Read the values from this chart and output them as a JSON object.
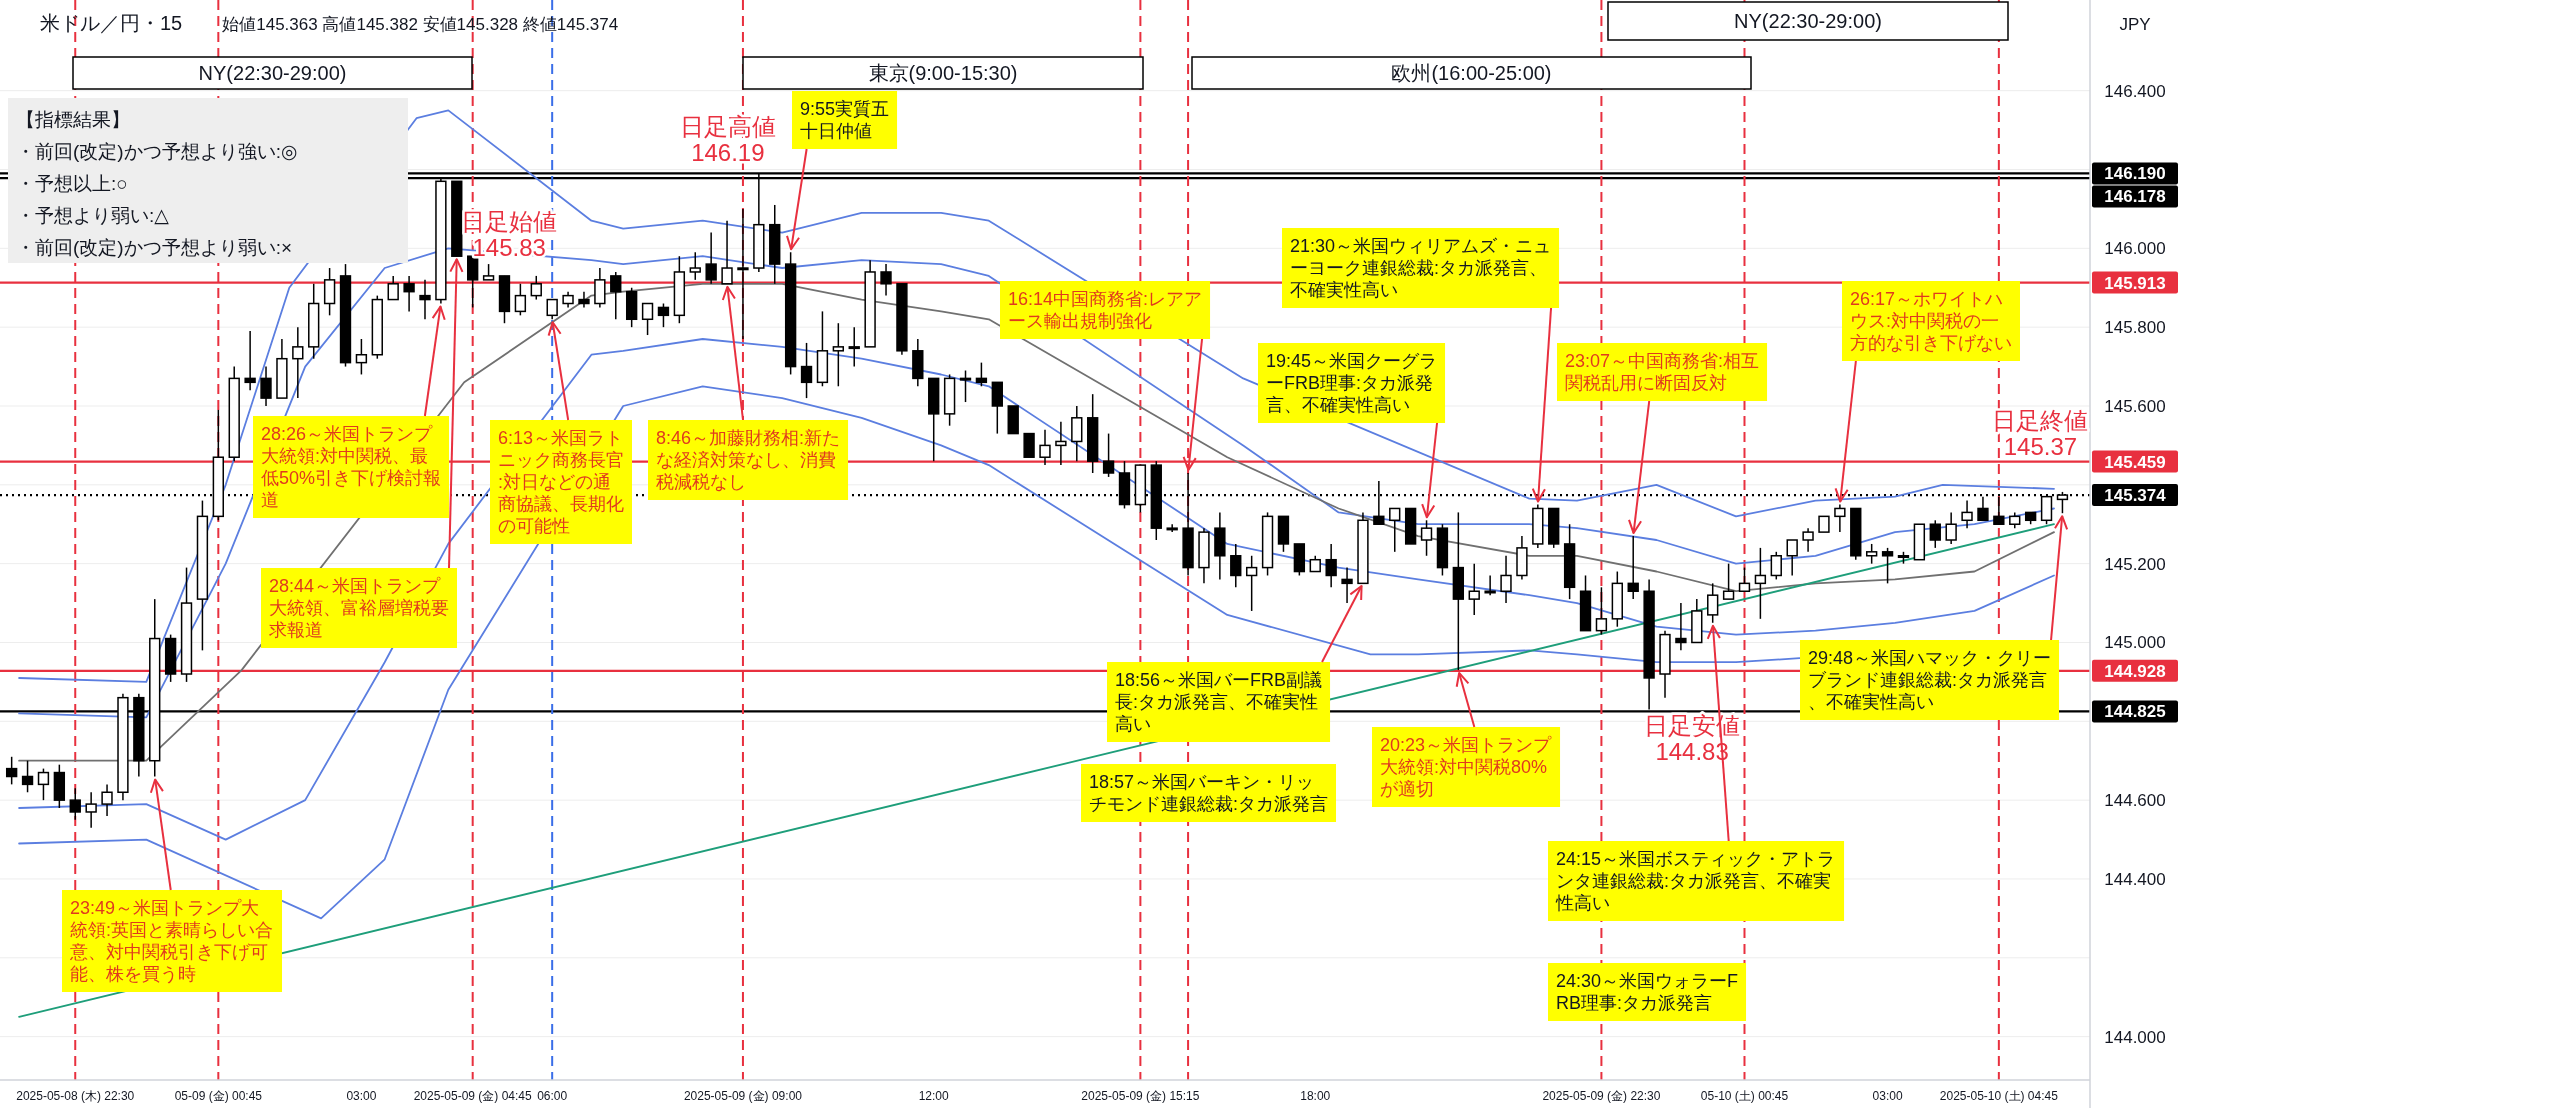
{
  "chart_data": {
    "type": "candlestick",
    "title": "米ドル／円・15",
    "subtitle": "始値145.363 高値145.382 安値145.328 終値145.374",
    "ylabel": "JPY",
    "x": [
      "2025-05-08T21:30",
      "2025-05-08T21:45",
      "2025-05-08T22:00",
      "2025-05-08T22:15",
      "2025-05-08T22:30",
      "2025-05-08T22:45",
      "2025-05-08T23:00",
      "2025-05-08T23:15",
      "2025-05-08T23:30",
      "2025-05-08T23:45",
      "2025-05-09T00:00",
      "2025-05-09T00:15",
      "2025-05-09T00:30",
      "2025-05-09T00:45",
      "2025-05-09T01:00",
      "2025-05-09T01:15",
      "2025-05-09T01:30",
      "2025-05-09T01:45",
      "2025-05-09T02:00",
      "2025-05-09T02:15",
      "2025-05-09T02:30",
      "2025-05-09T02:45",
      "2025-05-09T03:00",
      "2025-05-09T03:15",
      "2025-05-09T03:30",
      "2025-05-09T03:45",
      "2025-05-09T04:00",
      "2025-05-09T04:15",
      "2025-05-09T04:30",
      "2025-05-09T04:45",
      "2025-05-09T05:00",
      "2025-05-09T05:15",
      "2025-05-09T05:30",
      "2025-05-09T05:45",
      "2025-05-09T06:00",
      "2025-05-09T06:15",
      "2025-05-09T06:30",
      "2025-05-09T06:45",
      "2025-05-09T07:00",
      "2025-05-09T07:15",
      "2025-05-09T07:30",
      "2025-05-09T07:45",
      "2025-05-09T08:00",
      "2025-05-09T08:15",
      "2025-05-09T08:30",
      "2025-05-09T08:45",
      "2025-05-09T09:00",
      "2025-05-09T09:15",
      "2025-05-09T09:30",
      "2025-05-09T09:45",
      "2025-05-09T10:00",
      "2025-05-09T10:15",
      "2025-05-09T10:30",
      "2025-05-09T10:45",
      "2025-05-09T11:00",
      "2025-05-09T11:15",
      "2025-05-09T11:30",
      "2025-05-09T11:45",
      "2025-05-09T12:00",
      "2025-05-09T12:15",
      "2025-05-09T12:30",
      "2025-05-09T12:45",
      "2025-05-09T13:00",
      "2025-05-09T13:15",
      "2025-05-09T13:30",
      "2025-05-09T13:45",
      "2025-05-09T14:00",
      "2025-05-09T14:15",
      "2025-05-09T14:30",
      "2025-05-09T14:45",
      "2025-05-09T15:00",
      "2025-05-09T15:15",
      "2025-05-09T15:30",
      "2025-05-09T15:45",
      "2025-05-09T16:00",
      "2025-05-09T16:15",
      "2025-05-09T16:30",
      "2025-05-09T16:45",
      "2025-05-09T17:00",
      "2025-05-09T17:15",
      "2025-05-09T17:30",
      "2025-05-09T17:45",
      "2025-05-09T18:00",
      "2025-05-09T18:15",
      "2025-05-09T18:30",
      "2025-05-09T18:45",
      "2025-05-09T19:00",
      "2025-05-09T19:15",
      "2025-05-09T19:30",
      "2025-05-09T19:45",
      "2025-05-09T20:00",
      "2025-05-09T20:15",
      "2025-05-09T20:30",
      "2025-05-09T20:45",
      "2025-05-09T21:00",
      "2025-05-09T21:15",
      "2025-05-09T21:30",
      "2025-05-09T21:45",
      "2025-05-09T22:00",
      "2025-05-09T22:15",
      "2025-05-09T22:30",
      "2025-05-09T22:45",
      "2025-05-09T23:00",
      "2025-05-09T23:15",
      "2025-05-09T23:30",
      "2025-05-09T23:45",
      "2025-05-10T00:00",
      "2025-05-10T00:15",
      "2025-05-10T00:30",
      "2025-05-10T00:45",
      "2025-05-10T01:00",
      "2025-05-10T01:15",
      "2025-05-10T01:30",
      "2025-05-10T01:45",
      "2025-05-10T02:00",
      "2025-05-10T02:15",
      "2025-05-10T02:30",
      "2025-05-10T02:45",
      "2025-05-10T03:00",
      "2025-05-10T03:15",
      "2025-05-10T03:30",
      "2025-05-10T03:45",
      "2025-05-10T04:00",
      "2025-05-10T04:15",
      "2025-05-10T04:30",
      "2025-05-10T04:45",
      "2025-05-10T05:00",
      "2025-05-10T05:15",
      "2025-05-10T05:30",
      "2025-05-10T05:45"
    ],
    "ohlc": [
      [
        144.68,
        144.71,
        144.64,
        144.66
      ],
      [
        144.66,
        144.7,
        144.62,
        144.64
      ],
      [
        144.64,
        144.68,
        144.6,
        144.67
      ],
      [
        144.67,
        144.69,
        144.58,
        144.6
      ],
      [
        144.6,
        144.63,
        144.55,
        144.57
      ],
      [
        144.57,
        144.62,
        144.53,
        144.59
      ],
      [
        144.59,
        144.64,
        144.56,
        144.62
      ],
      [
        144.62,
        144.87,
        144.6,
        144.86
      ],
      [
        144.86,
        144.87,
        144.66,
        144.7
      ],
      [
        144.7,
        145.11,
        144.66,
        145.01
      ],
      [
        145.01,
        145.02,
        144.9,
        144.92
      ],
      [
        144.92,
        145.19,
        144.9,
        145.1
      ],
      [
        145.11,
        145.36,
        144.98,
        145.32
      ],
      [
        145.32,
        145.59,
        145.31,
        145.47
      ],
      [
        145.47,
        145.7,
        145.46,
        145.67
      ],
      [
        145.67,
        145.79,
        145.64,
        145.66
      ],
      [
        145.67,
        145.7,
        145.6,
        145.62
      ],
      [
        145.62,
        145.77,
        145.62,
        145.72
      ],
      [
        145.72,
        145.8,
        145.62,
        145.75
      ],
      [
        145.75,
        145.91,
        145.72,
        145.86
      ],
      [
        145.86,
        145.95,
        145.83,
        145.92
      ],
      [
        145.93,
        145.96,
        145.7,
        145.71
      ],
      [
        145.71,
        145.77,
        145.68,
        145.73
      ],
      [
        145.73,
        145.88,
        145.72,
        145.87
      ],
      [
        145.87,
        145.93,
        145.87,
        145.91
      ],
      [
        145.91,
        145.93,
        145.84,
        145.89
      ],
      [
        145.88,
        145.92,
        145.82,
        145.87
      ],
      [
        145.87,
        146.18,
        145.86,
        146.17
      ],
      [
        146.17,
        146.17,
        145.98,
        145.98
      ],
      [
        145.98,
        145.98,
        145.85,
        145.92
      ],
      [
        145.92,
        145.96,
        145.92,
        145.93
      ],
      [
        145.93,
        145.93,
        145.81,
        145.84
      ],
      [
        145.84,
        145.91,
        145.83,
        145.88
      ],
      [
        145.88,
        145.93,
        145.87,
        145.91
      ],
      [
        145.83,
        145.87,
        145.82,
        145.87
      ],
      [
        145.86,
        145.89,
        145.85,
        145.88
      ],
      [
        145.87,
        145.89,
        145.85,
        145.86
      ],
      [
        145.86,
        145.95,
        145.85,
        145.92
      ],
      [
        145.93,
        145.94,
        145.82,
        145.89
      ],
      [
        145.89,
        145.9,
        145.8,
        145.82
      ],
      [
        145.82,
        145.86,
        145.78,
        145.86
      ],
      [
        145.85,
        145.86,
        145.8,
        145.83
      ],
      [
        145.83,
        145.98,
        145.81,
        145.94
      ],
      [
        145.94,
        145.99,
        145.92,
        145.95
      ],
      [
        145.96,
        146.04,
        145.91,
        145.92
      ],
      [
        145.91,
        146.07,
        145.91,
        145.95
      ],
      [
        145.95,
        146.1,
        145.77,
        145.95
      ],
      [
        145.95,
        146.19,
        145.94,
        146.06
      ],
      [
        146.06,
        146.11,
        145.91,
        145.96
      ],
      [
        145.96,
        145.99,
        145.68,
        145.7
      ],
      [
        145.7,
        145.76,
        145.62,
        145.66
      ],
      [
        145.66,
        145.84,
        145.65,
        145.74
      ],
      [
        145.74,
        145.81,
        145.65,
        145.75
      ],
      [
        145.75,
        145.8,
        145.7,
        145.75
      ],
      [
        145.75,
        145.97,
        145.75,
        145.94
      ],
      [
        145.94,
        145.96,
        145.88,
        145.91
      ],
      [
        145.91,
        145.91,
        145.73,
        145.74
      ],
      [
        145.74,
        145.77,
        145.65,
        145.67
      ],
      [
        145.67,
        145.67,
        145.46,
        145.58
      ],
      [
        145.58,
        145.68,
        145.55,
        145.67
      ],
      [
        145.67,
        145.69,
        145.61,
        145.67
      ],
      [
        145.67,
        145.71,
        145.65,
        145.66
      ],
      [
        145.66,
        145.66,
        145.53,
        145.6
      ],
      [
        145.6,
        145.6,
        145.53,
        145.53
      ],
      [
        145.53,
        145.53,
        145.47,
        145.47
      ],
      [
        145.47,
        145.54,
        145.45,
        145.5
      ],
      [
        145.5,
        145.56,
        145.45,
        145.51
      ],
      [
        145.51,
        145.6,
        145.46,
        145.57
      ],
      [
        145.57,
        145.63,
        145.43,
        145.46
      ],
      [
        145.46,
        145.53,
        145.42,
        145.43
      ],
      [
        145.43,
        145.46,
        145.34,
        145.35
      ],
      [
        145.35,
        145.45,
        145.33,
        145.45
      ],
      [
        145.45,
        145.46,
        145.26,
        145.29
      ],
      [
        145.29,
        145.3,
        145.28,
        145.29
      ],
      [
        145.29,
        145.43,
        145.17,
        145.19
      ],
      [
        145.19,
        145.29,
        145.15,
        145.28
      ],
      [
        145.29,
        145.33,
        145.16,
        145.22
      ],
      [
        145.22,
        145.25,
        145.14,
        145.17
      ],
      [
        145.17,
        145.22,
        145.08,
        145.19
      ],
      [
        145.19,
        145.33,
        145.17,
        145.32
      ],
      [
        145.32,
        145.32,
        145.23,
        145.25
      ],
      [
        145.25,
        145.25,
        145.17,
        145.18
      ],
      [
        145.18,
        145.22,
        145.18,
        145.21
      ],
      [
        145.21,
        145.25,
        145.14,
        145.17
      ],
      [
        145.16,
        145.19,
        145.1,
        145.15
      ],
      [
        145.15,
        145.33,
        145.15,
        145.31
      ],
      [
        145.32,
        145.41,
        145.3,
        145.3
      ],
      [
        145.31,
        145.34,
        145.23,
        145.34
      ],
      [
        145.34,
        145.34,
        145.25,
        145.25
      ],
      [
        145.26,
        145.31,
        145.22,
        145.29
      ],
      [
        145.29,
        145.3,
        145.17,
        145.19
      ],
      [
        145.19,
        145.33,
        144.93,
        145.11
      ],
      [
        145.11,
        145.2,
        145.07,
        145.13
      ],
      [
        145.13,
        145.17,
        145.12,
        145.13
      ],
      [
        145.13,
        145.22,
        145.1,
        145.17
      ],
      [
        145.17,
        145.27,
        145.16,
        145.24
      ],
      [
        145.25,
        145.35,
        145.24,
        145.34
      ],
      [
        145.34,
        145.34,
        145.24,
        145.25
      ],
      [
        145.25,
        145.3,
        145.11,
        145.14
      ],
      [
        145.13,
        145.17,
        145.03,
        145.03
      ],
      [
        145.03,
        145.14,
        145.02,
        145.06
      ],
      [
        145.06,
        145.18,
        145.04,
        145.15
      ],
      [
        145.15,
        145.27,
        145.11,
        145.13
      ],
      [
        145.13,
        145.16,
        144.83,
        144.91
      ],
      [
        144.92,
        145.03,
        144.86,
        145.02
      ],
      [
        145.01,
        145.1,
        144.98,
        145.0
      ],
      [
        145.0,
        145.11,
        145.0,
        145.08
      ],
      [
        145.07,
        145.15,
        145.05,
        145.12
      ],
      [
        145.11,
        145.2,
        145.11,
        145.13
      ],
      [
        145.13,
        145.19,
        145.13,
        145.15
      ],
      [
        145.15,
        145.24,
        145.06,
        145.17
      ],
      [
        145.17,
        145.23,
        145.16,
        145.22
      ],
      [
        145.22,
        145.26,
        145.17,
        145.26
      ],
      [
        145.26,
        145.29,
        145.23,
        145.28
      ],
      [
        145.28,
        145.32,
        145.28,
        145.32
      ],
      [
        145.32,
        145.35,
        145.28,
        145.34
      ],
      [
        145.34,
        145.34,
        145.21,
        145.22
      ],
      [
        145.22,
        145.25,
        145.2,
        145.23
      ],
      [
        145.23,
        145.24,
        145.15,
        145.22
      ],
      [
        145.22,
        145.23,
        145.2,
        145.22
      ],
      [
        145.21,
        145.3,
        145.21,
        145.3
      ],
      [
        145.3,
        145.31,
        145.24,
        145.26
      ],
      [
        145.26,
        145.33,
        145.25,
        145.3
      ],
      [
        145.31,
        145.36,
        145.29,
        145.33
      ],
      [
        145.34,
        145.37,
        145.31,
        145.31
      ],
      [
        145.32,
        145.37,
        145.3,
        145.3
      ],
      [
        145.3,
        145.33,
        145.29,
        145.32
      ],
      [
        145.33,
        145.33,
        145.3,
        145.31
      ],
      [
        145.31,
        145.37,
        145.3,
        145.37
      ],
      [
        145.363,
        145.382,
        145.328,
        145.374
      ]
    ],
    "series": [
      {
        "type": "line",
        "color": "#5b7ee0",
        "x": [
          "2025-05-08T21:37",
          "2025-05-08T23:37",
          "2025-05-09T00:52",
          "2025-05-09T01:52",
          "2025-05-09T03:52",
          "2025-05-09T04:22",
          "2025-05-09T06:37",
          "2025-05-09T07:07",
          "2025-05-09T08:22",
          "2025-05-09T09:37",
          "2025-05-09T10:52",
          "2025-05-09T12:07",
          "2025-05-09T12:52",
          "2025-05-09T16:52",
          "2025-05-09T21:22",
          "2025-05-09T22:07",
          "2025-05-09T23:22",
          "2025-05-10T00:37",
          "2025-05-10T01:52",
          "2025-05-10T03:07",
          "2025-05-10T03:52",
          "2025-05-10T05:37"
        ],
        "values": [
          144.91,
          144.9,
          145.4,
          145.9,
          146.33,
          146.35,
          146.07,
          146.05,
          146.07,
          146.04,
          146.09,
          146.09,
          146.07,
          145.67,
          145.365,
          145.36,
          145.4,
          145.32,
          145.36,
          145.37,
          145.4,
          145.39
        ]
      },
      {
        "type": "line",
        "color": "#5b7ee0",
        "x": [
          "2025-05-08T21:37",
          "2025-05-08T23:37",
          "2025-05-09T00:52",
          "2025-05-09T02:07",
          "2025-05-09T03:22",
          "2025-05-09T04:22",
          "2025-05-09T06:37",
          "2025-05-09T07:07",
          "2025-05-09T08:22",
          "2025-05-09T09:37",
          "2025-05-09T10:52",
          "2025-05-09T12:07",
          "2025-05-09T12:52",
          "2025-05-09T16:52",
          "2025-05-09T18:22",
          "2025-05-09T19:37",
          "2025-05-09T21:22",
          "2025-05-09T22:07",
          "2025-05-09T23:22",
          "2025-05-10T00:37",
          "2025-05-10T01:52",
          "2025-05-10T03:07",
          "2025-05-10T04:22",
          "2025-05-10T05:37"
        ],
        "values": [
          144.82,
          144.81,
          145.2,
          145.7,
          145.95,
          146.0,
          145.97,
          145.96,
          145.98,
          145.95,
          145.97,
          145.96,
          145.93,
          145.5,
          145.33,
          145.3,
          145.3,
          145.29,
          145.26,
          145.2,
          145.22,
          145.28,
          145.3,
          145.34
        ]
      },
      {
        "type": "line",
        "color": "#707070",
        "x": [
          "2025-05-08T21:37",
          "2025-05-08T23:37",
          "2025-05-09T01:07",
          "2025-05-09T04:37",
          "2025-05-09T06:37",
          "2025-05-09T07:07",
          "2025-05-09T08:22",
          "2025-05-09T09:37",
          "2025-05-09T10:52",
          "2025-05-09T12:07",
          "2025-05-09T12:52",
          "2025-05-09T16:37",
          "2025-05-09T18:22",
          "2025-05-09T19:37",
          "2025-05-09T21:22",
          "2025-05-09T22:07",
          "2025-05-09T23:22",
          "2025-05-10T00:37",
          "2025-05-10T01:52",
          "2025-05-10T03:07",
          "2025-05-10T04:22",
          "2025-05-10T05:37"
        ],
        "values": [
          144.7,
          144.7,
          144.93,
          145.66,
          145.88,
          145.89,
          145.91,
          145.91,
          145.87,
          145.84,
          145.82,
          145.47,
          145.34,
          145.27,
          145.22,
          145.22,
          145.18,
          145.13,
          145.15,
          145.16,
          145.18,
          145.28
        ]
      },
      {
        "type": "line",
        "color": "#5b7ee0",
        "x": [
          "2025-05-08T21:37",
          "2025-05-08T23:37",
          "2025-05-09T00:52",
          "2025-05-09T02:07",
          "2025-05-09T03:22",
          "2025-05-09T04:22",
          "2025-05-09T06:37",
          "2025-05-09T07:07",
          "2025-05-09T08:22",
          "2025-05-09T09:37",
          "2025-05-09T10:52",
          "2025-05-09T12:07",
          "2025-05-09T12:52",
          "2025-05-09T16:37",
          "2025-05-09T18:22",
          "2025-05-09T19:37",
          "2025-05-09T21:22",
          "2025-05-09T22:07",
          "2025-05-09T23:22",
          "2025-05-10T00:37",
          "2025-05-10T01:52",
          "2025-05-10T03:07",
          "2025-05-10T04:22",
          "2025-05-10T05:37"
        ],
        "values": [
          144.58,
          144.59,
          144.5,
          144.6,
          144.95,
          145.25,
          145.73,
          145.74,
          145.77,
          145.75,
          145.72,
          145.68,
          145.65,
          145.25,
          145.19,
          145.16,
          145.12,
          145.1,
          145.04,
          145.02,
          145.03,
          145.05,
          145.08,
          145.17
        ]
      },
      {
        "type": "line",
        "color": "#5b7ee0",
        "x": [
          "2025-05-08T21:37",
          "2025-05-08T23:37",
          "2025-05-09T02:22",
          "2025-05-09T03:22",
          "2025-05-09T04:22",
          "2025-05-09T07:07",
          "2025-05-09T08:22",
          "2025-05-09T09:37",
          "2025-05-09T10:52",
          "2025-05-09T12:07",
          "2025-05-09T12:52",
          "2025-05-09T16:37",
          "2025-05-09T18:52",
          "2025-05-09T19:37",
          "2025-05-09T21:22",
          "2025-05-09T22:07",
          "2025-05-09T23:22",
          "2025-05-10T00:37",
          "2025-05-10T01:37"
        ],
        "values": [
          144.49,
          144.5,
          144.3,
          144.45,
          144.88,
          145.6,
          145.65,
          145.62,
          145.57,
          145.5,
          145.45,
          145.07,
          144.97,
          144.97,
          144.98,
          144.97,
          144.95,
          144.95,
          144.96
        ]
      },
      {
        "type": "line",
        "color": "#1e9e7a",
        "x": [
          "2025-05-08T21:37",
          "2025-05-10T05:37"
        ],
        "values": [
          144.05,
          145.3
        ]
      }
    ],
    "xlim": [
      "2025-05-08T21:19",
      "2025-05-10T06:11"
    ],
    "xticks": [
      {
        "value": "2025-05-08T22:30",
        "label": "2025-05-08 (木) 22:30"
      },
      {
        "value": "2025-05-09T00:45",
        "label": "05-09 (金) 00:45"
      },
      {
        "value": "2025-05-09T03:00",
        "label": "03:00"
      },
      {
        "value": "2025-05-09T04:45",
        "label": "2025-05-09 (金) 04:45"
      },
      {
        "value": "2025-05-09T06:00",
        "label": "06:00"
      },
      {
        "value": "2025-05-09T09:00",
        "label": "2025-05-09 (金) 09:00"
      },
      {
        "value": "2025-05-09T12:00",
        "label": "12:00"
      },
      {
        "value": "2025-05-09T15:15",
        "label": "2025-05-09 (金) 15:15"
      },
      {
        "value": "2025-05-09T18:00",
        "label": "18:00"
      },
      {
        "value": "2025-05-09T22:30",
        "label": "2025-05-09 (金) 22:30"
      },
      {
        "value": "2025-05-10T00:45",
        "label": "05-10 (土) 00:45"
      },
      {
        "value": "2025-05-10T03:00",
        "label": "03:00"
      },
      {
        "value": "2025-05-10T04:45",
        "label": "2025-05-10 (土) 04:45"
      }
    ],
    "ylim": [
      143.89,
      146.63
    ],
    "yticks": [
      {
        "value": 144.0,
        "label": "144.000"
      },
      {
        "value": 144.2,
        "label": null
      },
      {
        "value": 144.4,
        "label": "144.400"
      },
      {
        "value": 144.6,
        "label": "144.600"
      },
      {
        "value": 144.8,
        "label": null
      },
      {
        "value": 145.0,
        "label": "145.000"
      },
      {
        "value": 145.2,
        "label": "145.200"
      },
      {
        "value": 145.4,
        "label": null
      },
      {
        "value": 145.6,
        "label": "145.600"
      },
      {
        "value": 145.8,
        "label": "145.800"
      },
      {
        "value": 146.0,
        "label": "146.000"
      },
      {
        "value": 146.2,
        "label": null
      },
      {
        "value": 146.4,
        "label": "146.400"
      }
    ],
    "grid": "y",
    "ref_lines": [
      {
        "axis": "y",
        "value": 146.19,
        "label": "146.190",
        "color": "#000000",
        "line_style": "solid"
      },
      {
        "axis": "y",
        "value": 146.178,
        "label": "146.178",
        "color": "#000000",
        "line_style": "solid"
      },
      {
        "axis": "y",
        "value": 145.913,
        "label": "145.913",
        "color": "#e8303f",
        "line_style": "solid"
      },
      {
        "axis": "y",
        "value": 145.459,
        "label": "145.459",
        "color": "#e8303f",
        "line_style": "solid"
      },
      {
        "axis": "y",
        "value": 145.374,
        "label": "145.374",
        "color": "#000000",
        "line_style": "dotted"
      },
      {
        "axis": "y",
        "value": 144.928,
        "label": "144.928",
        "color": "#e8303f",
        "line_style": "solid"
      },
      {
        "axis": "y",
        "value": 144.825,
        "label": "144.825",
        "color": "#000000",
        "line_style": "solid"
      },
      {
        "axis": "x",
        "value": "2025-05-08T22:30",
        "color": "#e8303f",
        "line_style": "dashed"
      },
      {
        "axis": "x",
        "value": "2025-05-09T00:45",
        "color": "#e8303f",
        "line_style": "dashed"
      },
      {
        "axis": "x",
        "value": "2025-05-09T04:45",
        "color": "#e8303f",
        "line_style": "dashed"
      },
      {
        "axis": "x",
        "value": "2025-05-09T06:00",
        "color": "#3a6ee8",
        "line_style": "dashed"
      },
      {
        "axis": "x",
        "value": "2025-05-09T09:00",
        "color": "#e8303f",
        "line_style": "dashed"
      },
      {
        "axis": "x",
        "value": "2025-05-09T15:15",
        "color": "#e8303f",
        "line_style": "dashed"
      },
      {
        "axis": "x",
        "value": "2025-05-09T16:00",
        "color": "#e8303f",
        "line_style": "dashed"
      },
      {
        "axis": "x",
        "value": "2025-05-09T22:30",
        "color": "#e8303f",
        "line_style": "dashed"
      },
      {
        "axis": "x",
        "value": "2025-05-10T00:45",
        "color": "#e8303f",
        "line_style": "dashed"
      },
      {
        "axis": "x",
        "value": "2025-05-10T04:45",
        "color": "#e8303f",
        "line_style": "dashed"
      }
    ],
    "annotations": [
      "【指標結果】",
      "・前回(改定)かつ予想より強い:◎",
      "・予想以上:○",
      "・予想より弱い:△",
      "・前回(改定)かつ予想より弱い:×",
      "NY(22:30-29:00)",
      "東京(9:00-15:30)",
      "欧州(16:00-25:00)",
      "NY(22:30-29:00)",
      {
        "text": "23:49～米国トランプ大統領:英国と素晴らしい合意、対中関税引き下げ可能、株を買う時",
        "x": "2025-05-08T23:45",
        "y": 144.66
      },
      {
        "text": "28:26～米国トランプ大統領:対中関税、最低50%引き下げ検討報道",
        "x": "2025-05-09T04:15",
        "y": 145.86
      },
      {
        "text": "28:44～米国トランプ大統領、富裕層増税要求報道",
        "x": "2025-05-09T04:30",
        "y": 145.98
      },
      {
        "text": "6:13～米国ラトニック商務長官:対日などの通商協議、長期化の可能性",
        "x": "2025-05-09T06:00",
        "y": 145.82
      },
      {
        "text": "8:46～加藤財務相:新たな経済対策なし、消費税減税なし",
        "x": "2025-05-09T08:45",
        "y": 145.91
      },
      {
        "text": "9:55実質五十日仲値",
        "x": "2025-05-09T09:45",
        "y": 145.99
      },
      {
        "text": "日足高値146.19",
        "x": "2025-05-09T09:15",
        "y": 146.19
      },
      {
        "text": "日足始値145.83",
        "x": "2025-05-09T06:00",
        "y": 145.83
      },
      {
        "text": "16:14中国商務省:レアアース輸出規制強化",
        "x": "2025-05-09T16:00",
        "y": 145.43
      },
      {
        "text": "19:45～米国クーグラーFRB理事:タカ派発言、不確実性高い",
        "x": "2025-05-09T19:45",
        "y": 145.31
      },
      {
        "text": "21:30～米国ウィリアムズ・ニューヨーク連銀総裁:タカ派発言、不確実性高い",
        "x": "2025-05-09T21:30",
        "y": 145.35
      },
      {
        "text": "18:56～米国バーFRB副議長:タカ派発言、不確実性高い",
        "x": "2025-05-09T18:45",
        "y": 145.15
      },
      "18:57～米国バーキン・リッチモンド連銀総裁:タカ派発言",
      {
        "text": "20:23～米国トランプ大統領:対中関税80%が適切",
        "x": "2025-05-09T20:15",
        "y": 144.93
      },
      {
        "text": "23:07～中国商務省:相互関税乱用に断固反対",
        "x": "2025-05-09T23:00",
        "y": 145.27
      },
      {
        "text": "日足安値144.83",
        "x": "2025-05-09T23:15",
        "y": 144.83
      },
      {
        "text": "24:15～米国ボスティック・アトランタ連銀総裁:タカ派発言、不確実性高い",
        "x": "2025-05-10T00:15",
        "y": 145.05
      },
      "24:30～米国ウォラーFRB理事:タカ派発言",
      {
        "text": "26:17～ホワイトハウス:対中関税の一方的な引き下げない",
        "x": "2025-05-10T02:15",
        "y": 145.35
      },
      {
        "text": "日足終値145.37",
        "x": "2025-05-10T05:45",
        "y": 145.374
      },
      {
        "text": "29:48～米国ハマック・クリーブランド連銀総裁:タカ派発言、不確実性高い",
        "x": "2025-05-10T05:45",
        "y": 145.328
      }
    ]
  }
}
